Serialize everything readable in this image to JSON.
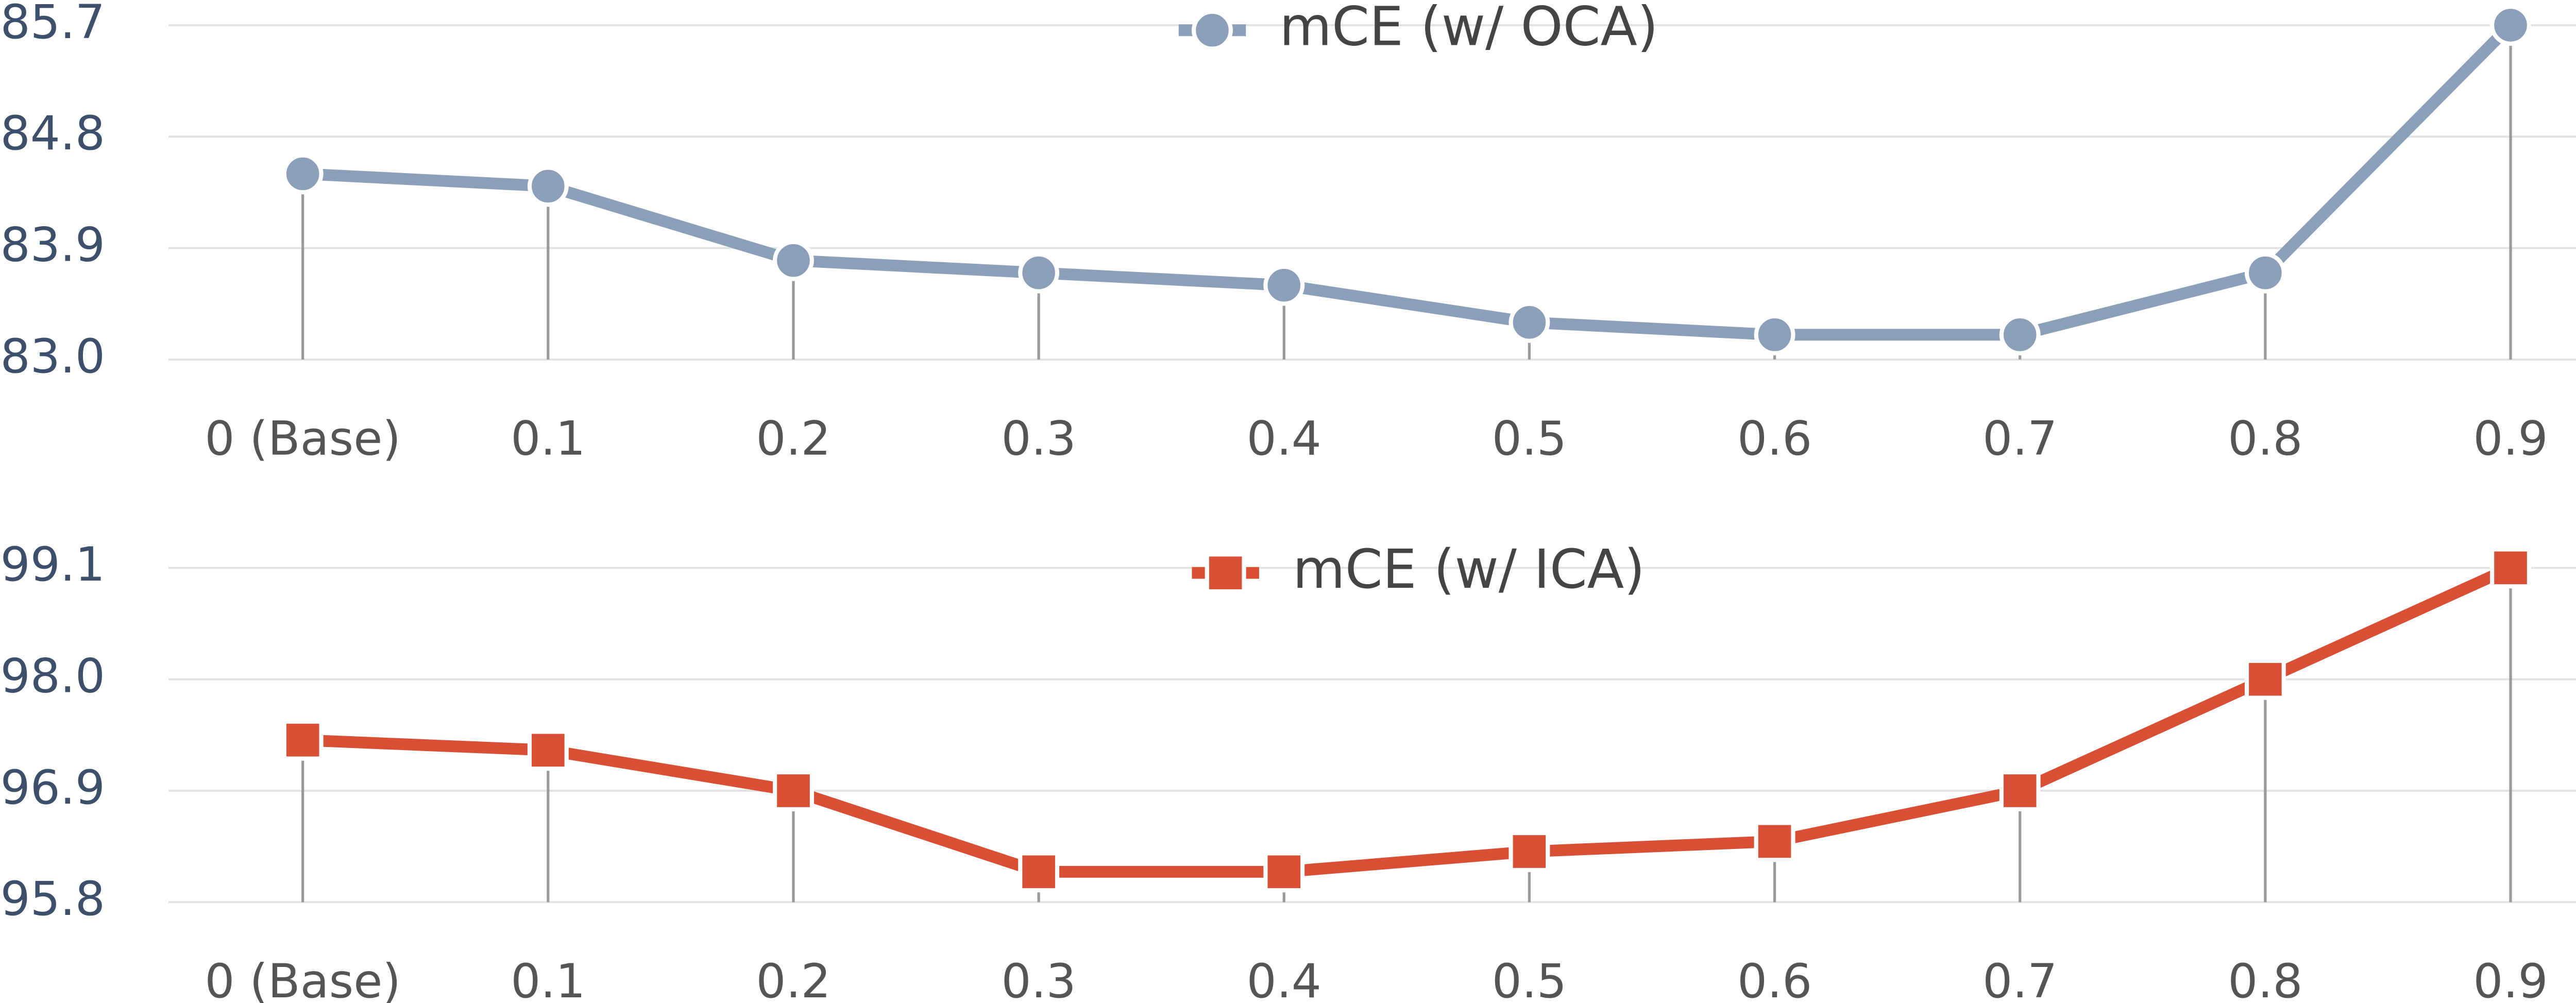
{
  "chart_data": [
    {
      "type": "line",
      "legend": "top",
      "categories": [
        "0 (Base)",
        "0.1",
        "0.2",
        "0.3",
        "0.4",
        "0.5",
        "0.6",
        "0.7",
        "0.8",
        "0.9"
      ],
      "series": [
        {
          "name": "mCE (w/ OCA)",
          "color": "#8b9fb9",
          "marker": "circle",
          "values": [
            84.5,
            84.4,
            83.8,
            83.7,
            83.6,
            83.3,
            83.2,
            83.2,
            83.7,
            85.7
          ]
        }
      ],
      "ylim": [
        83.0,
        85.7
      ],
      "yticks": [
        {
          "value": 83.0,
          "label": "83.0"
        },
        83.9,
        84.8,
        85.7
      ],
      "grid": true
    },
    {
      "type": "line",
      "legend": "top",
      "categories": [
        "0 (Base)",
        "0.1",
        "0.2",
        "0.3",
        "0.4",
        "0.5",
        "0.6",
        "0.7",
        "0.8",
        "0.9"
      ],
      "series": [
        {
          "name": "mCE (w/ ICA)",
          "color": "#d84f36",
          "marker": "square",
          "values": [
            97.4,
            97.3,
            96.9,
            96.1,
            96.1,
            96.3,
            96.4,
            96.9,
            98.0,
            99.1
          ]
        }
      ],
      "ylim": [
        95.8,
        99.1
      ],
      "yticks": [
        95.8,
        96.9,
        {
          "value": 98.0,
          "label": "98.0"
        },
        99.1
      ],
      "grid": true
    }
  ]
}
